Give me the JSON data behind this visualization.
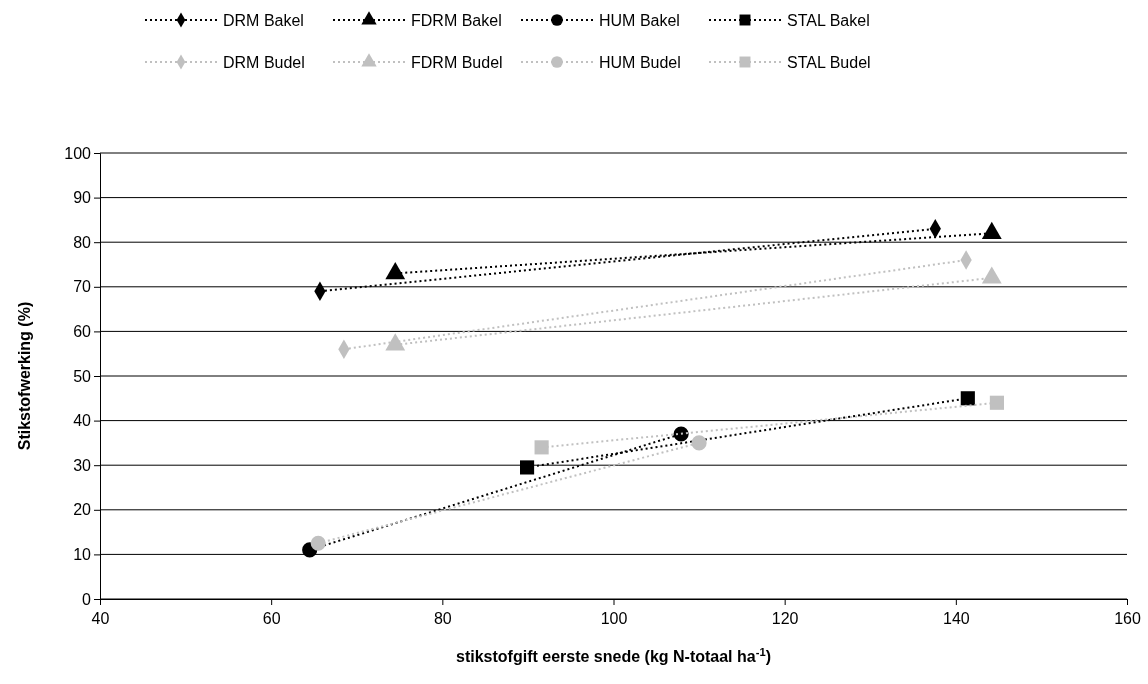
{
  "chart_data": {
    "type": "line",
    "xlabel": "stikstofgift eerste snede (kg N-totaal ha$^{-1}$)",
    "ylabel": "Stikstofwerking (%)",
    "xlim": [
      40,
      160
    ],
    "xticks": [
      40,
      60,
      80,
      100,
      120,
      140,
      160
    ],
    "ylim": [
      0,
      100
    ],
    "yticks": [
      0,
      10,
      20,
      30,
      40,
      50,
      60,
      70,
      80,
      90,
      100
    ],
    "grid": "y",
    "legend": "top",
    "line_style": "dotted",
    "series": [
      {
        "name": "DRM Bakel",
        "color": "#000000",
        "marker": "diamond",
        "x": [
          65.7,
          137.6
        ],
        "values": [
          69,
          83
        ]
      },
      {
        "name": "FDRM Bakel",
        "color": "#000000",
        "marker": "triangle",
        "x": [
          74.5,
          144.2
        ],
        "values": [
          73,
          82
        ]
      },
      {
        "name": "HUM Bakel",
        "color": "#000000",
        "marker": "circle",
        "x": [
          64.5,
          107.9
        ],
        "values": [
          11,
          37
        ]
      },
      {
        "name": "STAL Bakel",
        "color": "#000000",
        "marker": "square",
        "x": [
          89.9,
          141.4
        ],
        "values": [
          29.5,
          45
        ]
      },
      {
        "name": "DRM Budel",
        "color": "#c0c0c0",
        "marker": "diamond",
        "x": [
          68.5,
          141.2
        ],
        "values": [
          56,
          76
        ]
      },
      {
        "name": "FDRM Budel",
        "color": "#c0c0c0",
        "marker": "triangle",
        "x": [
          74.5,
          144.2
        ],
        "values": [
          57,
          72
        ]
      },
      {
        "name": "HUM Budel",
        "color": "#c0c0c0",
        "marker": "circle",
        "x": [
          65.5,
          110
        ],
        "values": [
          12.5,
          35
        ]
      },
      {
        "name": "STAL Budel",
        "color": "#c0c0c0",
        "marker": "square",
        "x": [
          91.6,
          144.8
        ],
        "values": [
          34,
          44
        ]
      }
    ]
  }
}
